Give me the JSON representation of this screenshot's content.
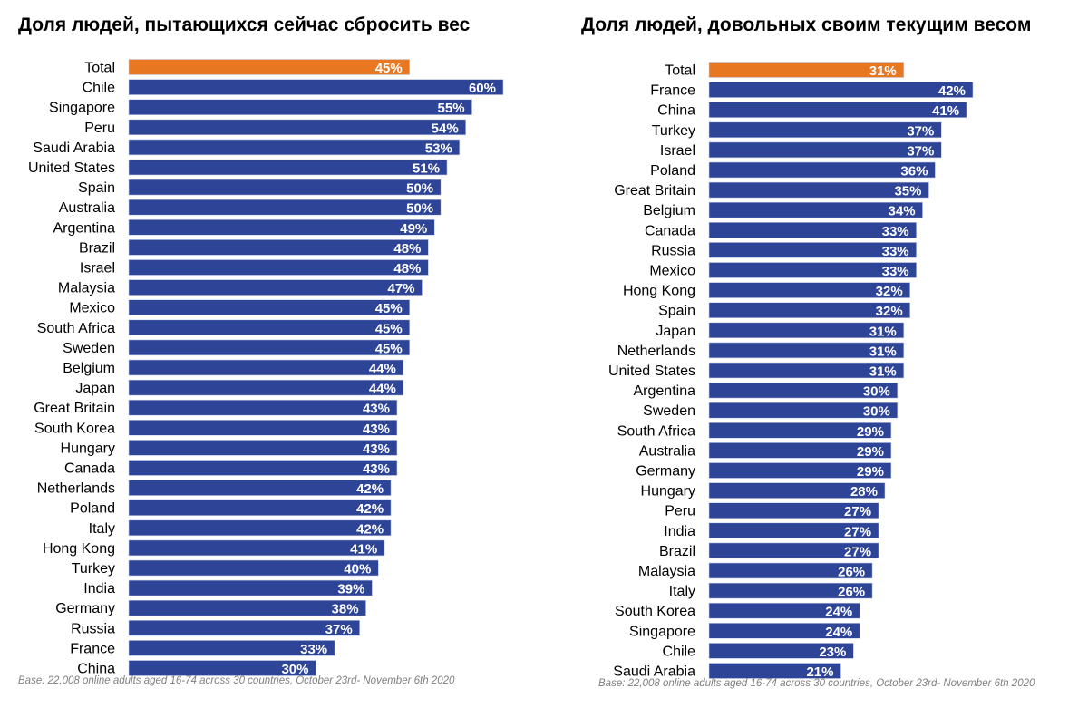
{
  "colors": {
    "total": "#E87722",
    "country": "#2E4597",
    "label_text": "#FFFFFF"
  },
  "chart_data": [
    {
      "type": "bar",
      "orientation": "horizontal",
      "title": "Доля людей, пытающихся сейчас сбросить вес",
      "value_format": "percent",
      "xlim": [
        0,
        60
      ],
      "grid": false,
      "footnote": "Base: 22,008 online adults aged 16-74 across 30 countries, October 23rd- November 6th 2020",
      "categories": [
        "Total",
        "Chile",
        "Singapore",
        "Peru",
        "Saudi Arabia",
        "United States",
        "Spain",
        "Australia",
        "Argentina",
        "Brazil",
        "Israel",
        "Malaysia",
        "Mexico",
        "South Africa",
        "Sweden",
        "Belgium",
        "Japan",
        "Great Britain",
        "South Korea",
        "Hungary",
        "Canada",
        "Netherlands",
        "Poland",
        "Italy",
        "Hong Kong",
        "Turkey",
        "India",
        "Germany",
        "Russia",
        "France",
        "China"
      ],
      "values": [
        45,
        60,
        55,
        54,
        53,
        51,
        50,
        50,
        49,
        48,
        48,
        47,
        45,
        45,
        45,
        44,
        44,
        43,
        43,
        43,
        43,
        42,
        42,
        42,
        41,
        40,
        39,
        38,
        37,
        33,
        30
      ]
    },
    {
      "type": "bar",
      "orientation": "horizontal",
      "title": "Доля людей, довольных своим текущим весом",
      "value_format": "percent",
      "xlim": [
        0,
        42
      ],
      "grid": false,
      "footnote": "Base: 22,008 online adults aged 16-74 across 30 countries, October 23rd- November 6th 2020",
      "categories": [
        "Total",
        "France",
        "China",
        "Turkey",
        "Israel",
        "Poland",
        "Great Britain",
        "Belgium",
        "Canada",
        "Russia",
        "Mexico",
        "Hong Kong",
        "Spain",
        "Japan",
        "Netherlands",
        "United States",
        "Argentina",
        "Sweden",
        "South Africa",
        "Australia",
        "Germany",
        "Hungary",
        "Peru",
        "India",
        "Brazil",
        "Malaysia",
        "Italy",
        "South Korea",
        "Singapore",
        "Chile",
        "Saudi Arabia"
      ],
      "values": [
        31,
        42,
        41,
        37,
        37,
        36,
        35,
        34,
        33,
        33,
        33,
        32,
        32,
        31,
        31,
        31,
        30,
        30,
        29,
        29,
        29,
        28,
        27,
        27,
        27,
        26,
        26,
        24,
        24,
        23,
        21
      ]
    }
  ]
}
